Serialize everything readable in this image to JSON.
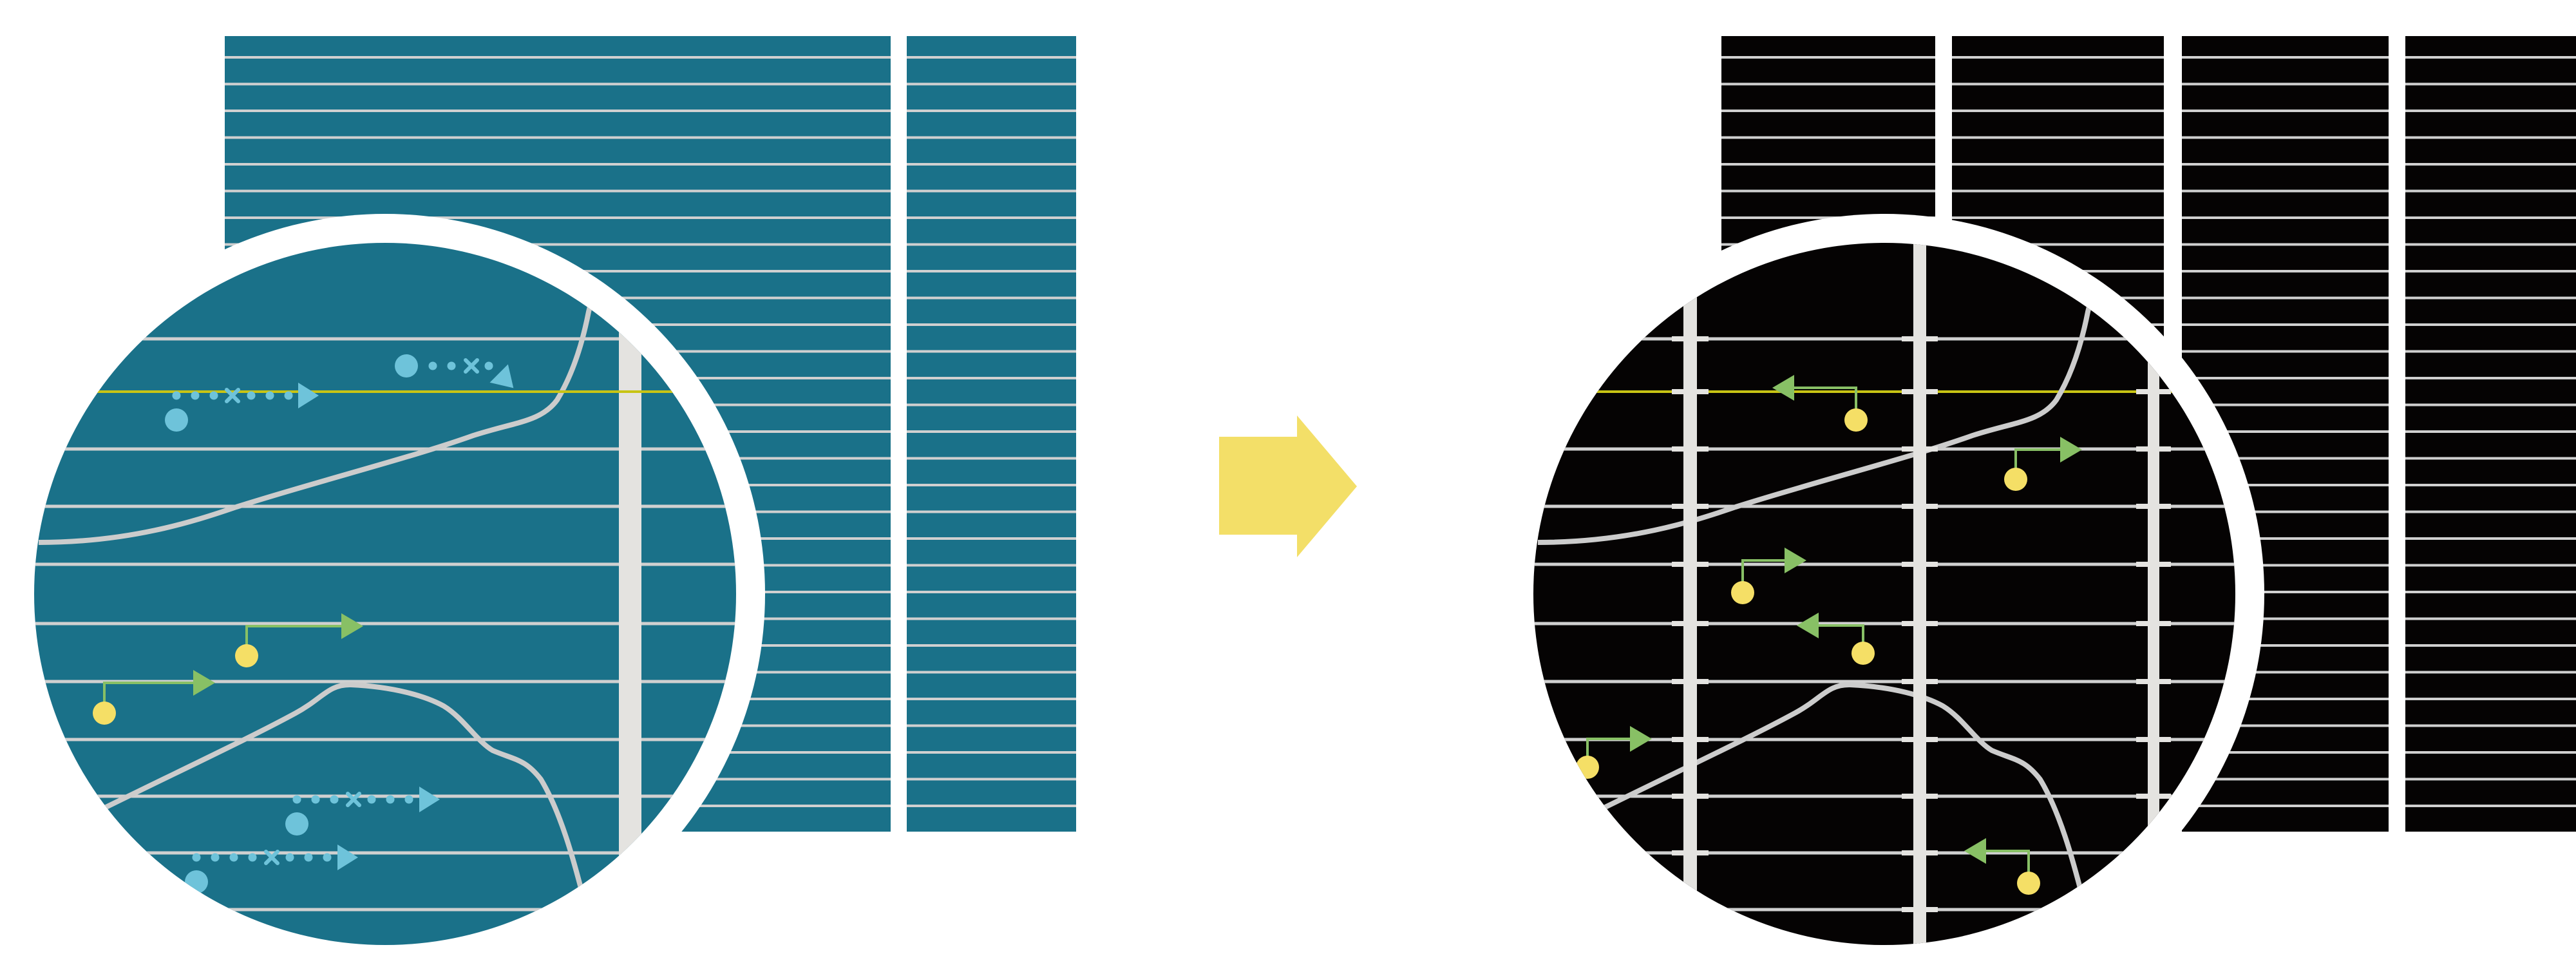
{
  "colors": {
    "background": "#ffffff",
    "before_panel": "#1a7189",
    "after_panel": "#050303",
    "stripe": "#d0d0d0",
    "rail": "#e4e3e0",
    "highlight_track": "#c8c414",
    "curve": "#cccccc",
    "dotted_trajectory": "#6ec3da",
    "green_arrow": "#88c065",
    "yellow_dot": "#f5df66",
    "transition_arrow": "#f3df68",
    "ring": "#ffffff"
  },
  "panels": {
    "before": {
      "style": "teal striped grid with 2 columns, magnified circle showing dotted trajectories"
    },
    "after": {
      "style": "black striped grid with 4 columns, magnified circle showing rails and green arrows"
    }
  }
}
